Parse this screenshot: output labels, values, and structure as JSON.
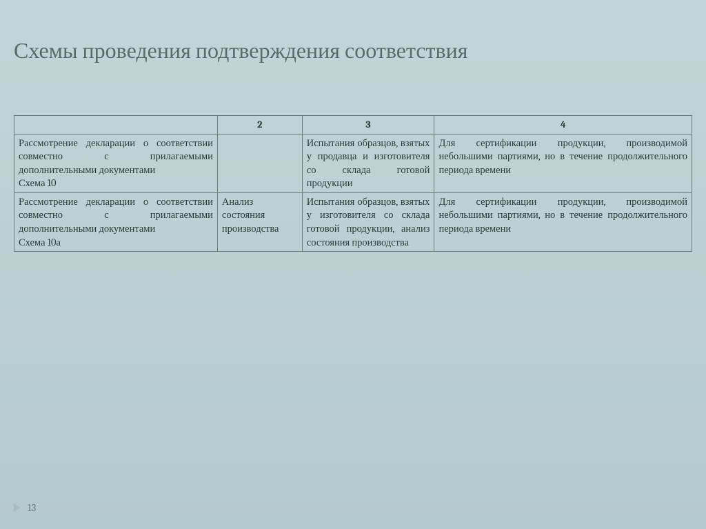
{
  "title": "Схемы проведения подтверждения соответствия",
  "pageNumber": "13",
  "table": {
    "headers": {
      "col1": "",
      "col2": "2",
      "col3": "3",
      "col4": "4"
    },
    "rows": [
      {
        "col1": "Рассмотрение декларации о соответствии совместно с прилагаемыми дополнительными документами\nСхема 10",
        "col2": "",
        "col3": "Испытания образцов, взятых у продавца и изготовителя со склада готовой продукции",
        "col4": "Для сертификации продукции, производимой небольшими партиями, но в течение продолжительного периода времени"
      },
      {
        "col1": "Рассмотрение декларации о соответствии совместно с прилагаемыми дополнительными документами\nСхема 10а",
        "col2": "Анализ состояния производства",
        "col3": "Испытания образцов, взятых у изготовителя со склада готовой продукции, анализ состояния производства",
        "col4": "Для сертификации продукции, производимой небольшими партиями, но в течение продолжительного периода времени"
      }
    ]
  }
}
